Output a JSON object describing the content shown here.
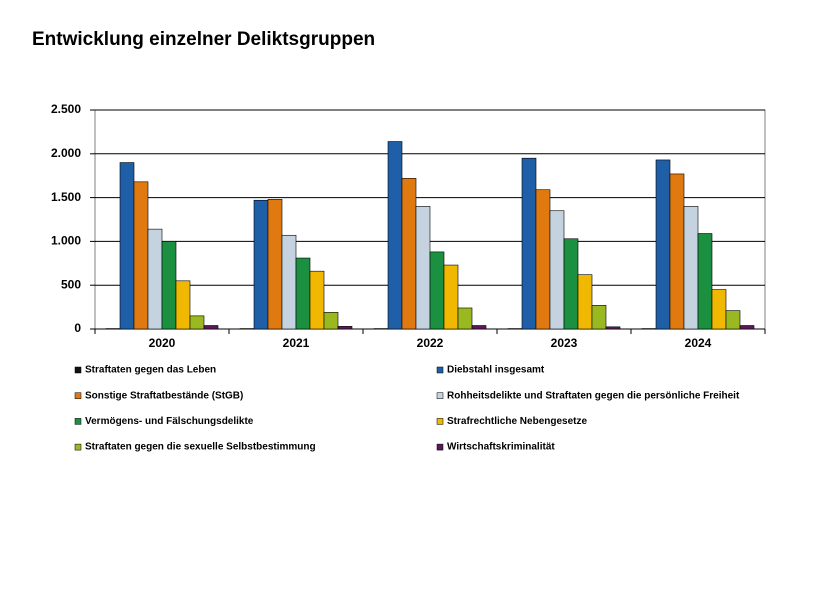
{
  "chart_data": {
    "type": "bar",
    "title": "Entwicklung einzelner Deliktsgruppen",
    "categories": [
      "2020",
      "2021",
      "2022",
      "2023",
      "2024"
    ],
    "series": [
      {
        "name": "Straftaten gegen das Leben",
        "color": "#111111",
        "values": [
          5,
          5,
          5,
          5,
          5
        ]
      },
      {
        "name": "Diebstahl insgesamt",
        "color": "#1f5fa8",
        "values": [
          1900,
          1470,
          2140,
          1950,
          1930
        ]
      },
      {
        "name": "Sonstige Straftatbestände (StGB)",
        "color": "#e07a10",
        "values": [
          1680,
          1480,
          1720,
          1590,
          1770
        ]
      },
      {
        "name": "Rohheitsdelikte und Straftaten gegen die persönliche Freiheit",
        "color": "#c5d3e0",
        "values": [
          1140,
          1070,
          1400,
          1350,
          1400
        ]
      },
      {
        "name": "Vermögens- und Fälschungsdelikte",
        "color": "#1a9040",
        "values": [
          1000,
          810,
          880,
          1030,
          1090
        ]
      },
      {
        "name": "Strafrechtliche Nebengesetze",
        "color": "#f0b800",
        "values": [
          550,
          660,
          730,
          620,
          450
        ]
      },
      {
        "name": "Straftaten gegen die sexuelle Selbstbestimmung",
        "color": "#9ab820",
        "values": [
          150,
          190,
          240,
          270,
          210
        ]
      },
      {
        "name": "Wirtschaftskriminalität",
        "color": "#5a1a5a",
        "values": [
          40,
          30,
          40,
          25,
          40
        ]
      }
    ],
    "ylim": [
      0,
      2500
    ],
    "yticks": [
      0,
      500,
      {
        "value": 1000,
        "label": "1.000"
      },
      {
        "value": 1500,
        "label": "1.500"
      },
      {
        "value": 2000,
        "label": "2.000"
      },
      {
        "value": 2500,
        "label": "2.500"
      }
    ],
    "grid": true
  }
}
